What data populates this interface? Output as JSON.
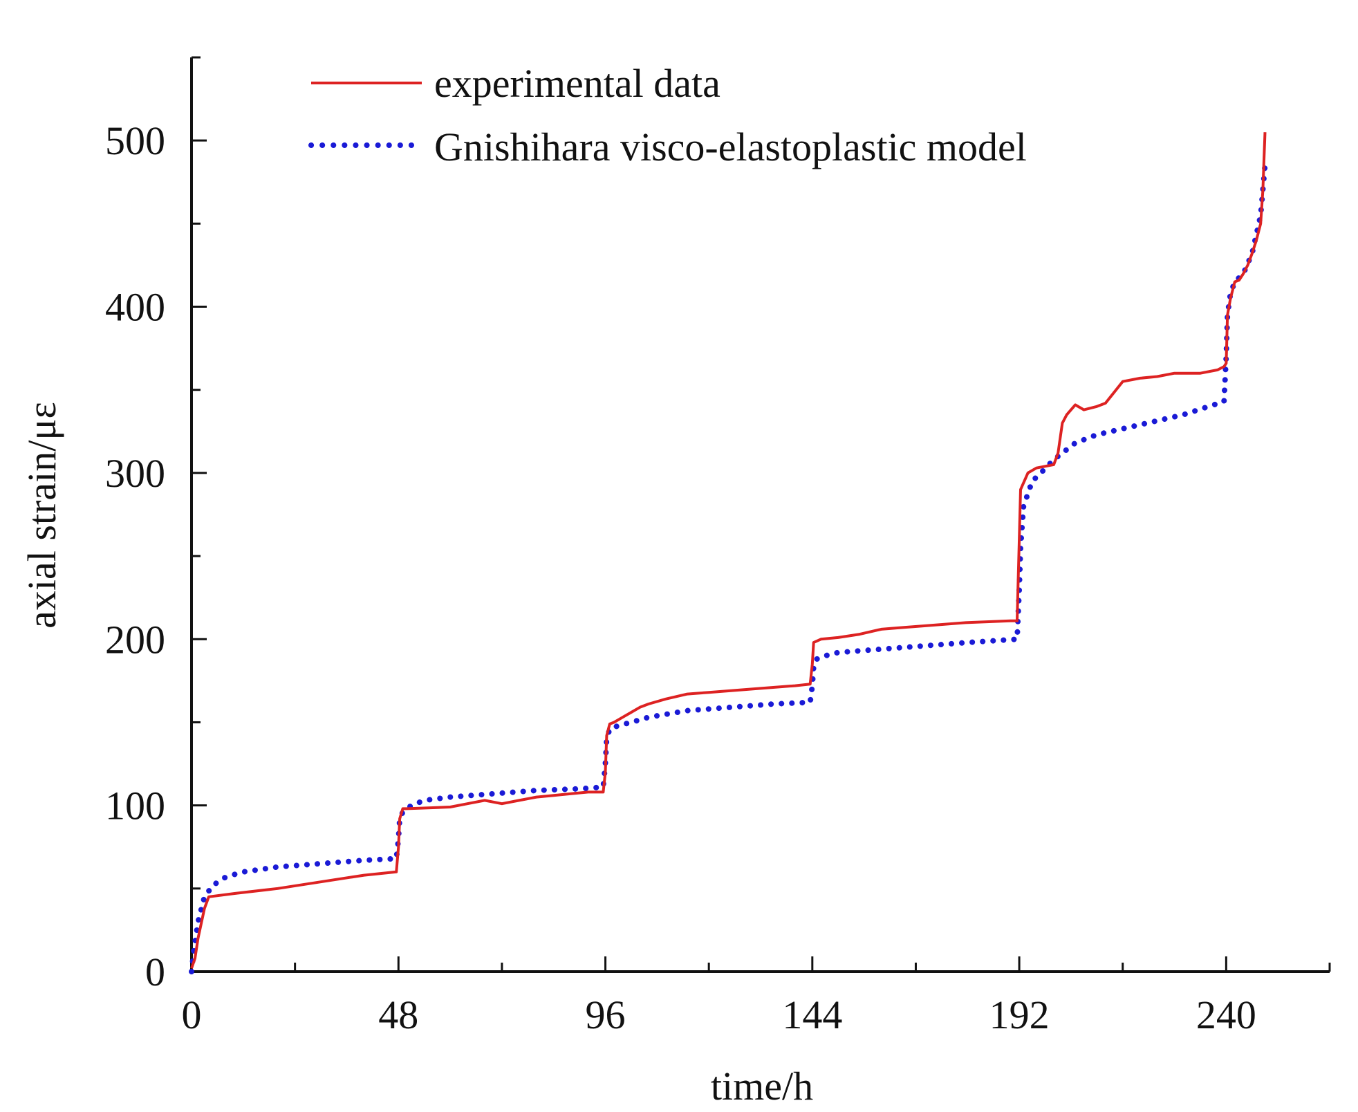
{
  "chart_data": {
    "type": "line",
    "title": "",
    "xlabel": "time/h",
    "ylabel": "axial strain/με",
    "xlim": [
      0,
      264
    ],
    "ylim": [
      0,
      550
    ],
    "xticks": [
      0,
      48,
      96,
      144,
      192,
      240
    ],
    "xminor": [
      24,
      72,
      120,
      168,
      216,
      264
    ],
    "yticks": [
      0,
      100,
      200,
      300,
      400,
      500
    ],
    "yminor": [
      50,
      150,
      250,
      350,
      450
    ],
    "xtick_labels": [
      "0",
      "48",
      "96",
      "144",
      "192",
      "240"
    ],
    "ytick_labels": [
      "0",
      "100",
      "200",
      "300",
      "400",
      "500"
    ],
    "grid": false,
    "legend_position": "top-left",
    "colors": {
      "experimental": "#dd2222",
      "model": "#1a1ad6",
      "axis": "#111111"
    },
    "series": [
      {
        "name": "experimental data",
        "style": "solid",
        "x": [
          0,
          0.8,
          1.5,
          3,
          4,
          10,
          20,
          30,
          40,
          47.5,
          48,
          48.3,
          49,
          50,
          60,
          64,
          68,
          72,
          76,
          80,
          84,
          88,
          92,
          95.5,
          96,
          96.3,
          97,
          98,
          100,
          102,
          104,
          106,
          110,
          115,
          120,
          130,
          140,
          143.5,
          144,
          144.3,
          146,
          150,
          155,
          160,
          165,
          170,
          180,
          190,
          191.5,
          192,
          192.3,
          194,
          196,
          198,
          200,
          201,
          202,
          203,
          205,
          207,
          210,
          212,
          216,
          220,
          224,
          228,
          234,
          238,
          239.5,
          240,
          240.3,
          241,
          242,
          243,
          244,
          245,
          246,
          247,
          248,
          248.5,
          249
        ],
        "y": [
          2,
          8,
          20,
          38,
          45,
          47,
          50,
          54,
          58,
          60,
          75,
          92,
          98,
          98,
          99,
          101,
          103,
          101,
          103,
          105,
          106,
          107,
          108,
          108,
          120,
          142,
          149,
          150,
          153,
          156,
          159,
          161,
          164,
          167,
          168,
          170,
          172,
          173,
          185,
          198,
          200,
          201,
          203,
          206,
          207,
          208,
          210,
          211,
          211,
          260,
          290,
          300,
          303,
          304,
          305,
          312,
          330,
          335,
          341,
          338,
          340,
          342,
          355,
          357,
          358,
          360,
          360,
          362,
          364,
          366,
          395,
          405,
          415,
          416,
          420,
          425,
          432,
          440,
          450,
          470,
          505
        ]
      },
      {
        "name": "Gnishihara visco-elastoplastic model",
        "style": "dotted",
        "x": [
          0,
          0.5,
          1.5,
          3,
          5,
          8,
          12,
          20,
          30,
          40,
          47.5,
          48,
          48.3,
          49,
          51,
          54,
          60,
          70,
          80,
          90,
          95.5,
          96,
          96.3,
          97,
          99,
          102,
          106,
          115,
          125,
          135,
          143.5,
          144,
          144.3,
          145,
          147,
          150,
          160,
          170,
          180,
          191.5,
          192,
          192.3,
          193,
          195,
          197,
          200,
          205,
          210,
          220,
          230,
          239.5,
          240,
          240.3,
          241,
          242,
          244,
          246,
          248,
          249
        ],
        "y": [
          0,
          12,
          30,
          45,
          52,
          57,
          60,
          63,
          65,
          67,
          68,
          80,
          92,
          96,
          100,
          103,
          105,
          107,
          109,
          110,
          111,
          125,
          140,
          146,
          148,
          150,
          153,
          157,
          159,
          161,
          162,
          172,
          183,
          188,
          190,
          192,
          194,
          196,
          198,
          200,
          230,
          255,
          280,
          295,
          300,
          308,
          318,
          323,
          329,
          335,
          343,
          370,
          395,
          408,
          415,
          420,
          432,
          455,
          485
        ]
      }
    ]
  }
}
